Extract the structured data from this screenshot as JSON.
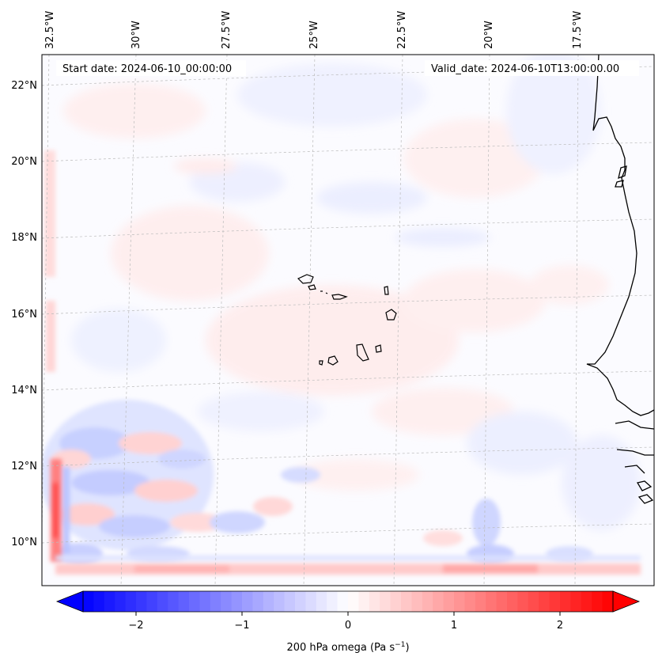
{
  "map": {
    "start_date_label": "Start date: 2024-06-10_00:00:00",
    "valid_date_label": "Valid_date: 2024-06-10T13:00:00.00",
    "lon_labels": [
      "32.5°W",
      "30°W",
      "27.5°W",
      "25°W",
      "22.5°W",
      "20°W",
      "17.5°W"
    ],
    "lat_labels": [
      "22°N",
      "20°N",
      "18°N",
      "16°N",
      "14°N",
      "12°N",
      "10°N"
    ],
    "field_colors": {
      "background": "#fbfbff",
      "weak_positive": "#ffe9e9",
      "weak_negative": "#e6e9ff",
      "strong_positive": "#ff8c8c",
      "strong_negative": "#9aa6ff"
    },
    "coastline_color": "#000000",
    "gridline_color": "#bbbbbb"
  },
  "colorbar": {
    "label_main": "200 hPa omega (Pa s",
    "label_sup": "−1",
    "label_end": ")",
    "ticks": [
      "−2",
      "−1",
      "0",
      "1",
      "2"
    ],
    "tick_values": [
      -2,
      -1,
      0,
      1,
      2
    ],
    "vmin": -2.5,
    "vmax": 2.5,
    "extend": "both",
    "colors": {
      "min": "#0000ff",
      "mid": "#ffffff",
      "max": "#ff0000"
    }
  }
}
